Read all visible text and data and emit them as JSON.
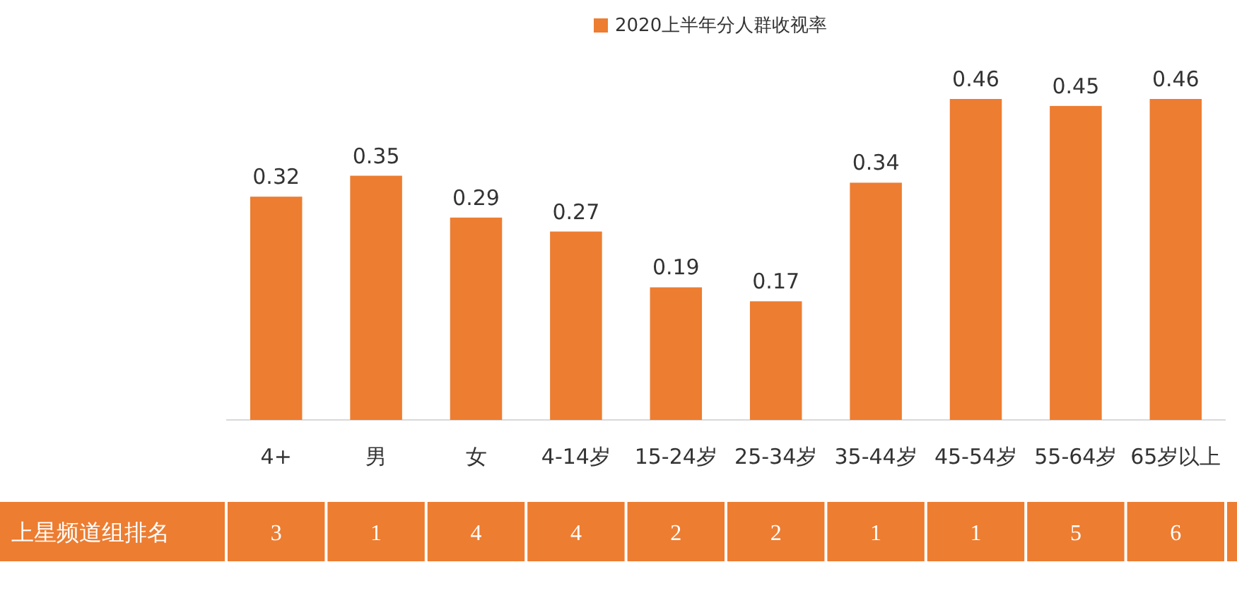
{
  "chart_data": [
    {
      "type": "bar",
      "categories": [
        "4+",
        "男",
        "女",
        "4-14岁",
        "15-24岁",
        "25-34岁",
        "35-44岁",
        "45-54岁",
        "55-64岁",
        "65岁以上"
      ],
      "series": [
        {
          "name": "2020上半年分人群收视率",
          "color": "#ed7d31",
          "values": [
            0.32,
            0.35,
            0.29,
            0.27,
            0.19,
            0.17,
            0.34,
            0.46,
            0.45,
            0.46
          ]
        }
      ],
      "data_labels": true,
      "legend": "top"
    },
    {
      "type": "other",
      "title": "上星频道组排名",
      "values": [
        3,
        1,
        4,
        4,
        2,
        2,
        1,
        1,
        5,
        6
      ],
      "data_labels": true
    }
  ]
}
